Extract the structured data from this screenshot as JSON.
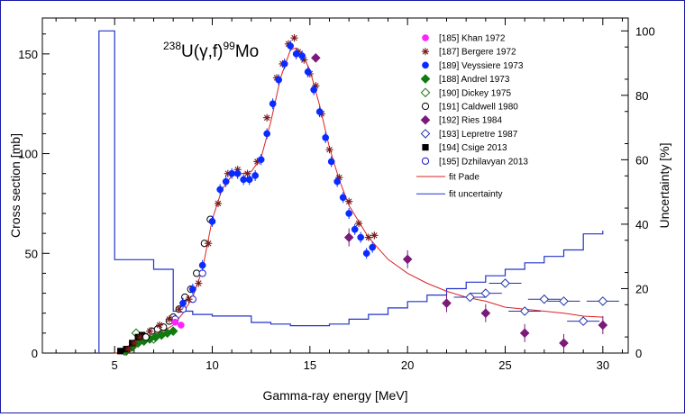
{
  "chart_data": {
    "type": "scatter",
    "title_parts": {
      "mass_target": "238",
      "element_target": "U(",
      "gamma": "γ",
      "reaction": ",f)",
      "mass_product": "99",
      "element_product": "Mo"
    },
    "xlabel": "Gamma-ray energy [MeV]",
    "ylabel": "Cross section [mb]",
    "y2label": "Uncertainty [%]",
    "xlim": [
      1.3,
      31.3
    ],
    "ylim": [
      0,
      168
    ],
    "y2lim": [
      0,
      104
    ],
    "xticks": [
      5,
      10,
      15,
      20,
      25,
      30
    ],
    "yticks": [
      0,
      50,
      100,
      150
    ],
    "y2ticks": [
      0,
      20,
      40,
      60,
      80,
      100
    ],
    "colors": {
      "frame": "#1a1aa6",
      "fit": "#dd2222",
      "uncertainty": "#2233cc"
    },
    "series": [
      {
        "name": "[185] Khan 1972",
        "marker": "dot",
        "color": "#ff22ff",
        "points": [
          [
            8.1,
            15.5
          ],
          [
            8.4,
            14
          ]
        ]
      },
      {
        "name": "[187] Bergere 1972",
        "marker": "star",
        "color": "#7a1a1a",
        "points": [
          [
            5.7,
            2
          ],
          [
            6.0,
            5
          ],
          [
            6.3,
            8
          ],
          [
            6.8,
            11
          ],
          [
            7.3,
            14
          ],
          [
            7.8,
            17
          ],
          [
            8.3,
            22
          ],
          [
            8.8,
            27
          ],
          [
            9.3,
            35
          ],
          [
            9.8,
            55
          ],
          [
            10.3,
            75
          ],
          [
            10.8,
            90
          ],
          [
            11.3,
            92
          ],
          [
            11.8,
            90
          ],
          [
            12.3,
            96
          ],
          [
            12.8,
            118
          ],
          [
            13.3,
            138
          ],
          [
            13.6,
            145
          ],
          [
            13.9,
            155
          ],
          [
            14.2,
            158
          ],
          [
            14.4,
            151
          ],
          [
            14.7,
            147
          ],
          [
            15.0,
            140
          ],
          [
            15.3,
            134
          ],
          [
            15.6,
            120
          ],
          [
            16.0,
            102
          ],
          [
            16.5,
            88
          ],
          [
            17.0,
            76
          ],
          [
            17.5,
            65
          ],
          [
            18.0,
            58
          ],
          [
            18.3,
            59
          ]
        ]
      },
      {
        "name": "[189] Veyssiere 1973",
        "marker": "dot",
        "color": "#0a2bff",
        "points": [
          [
            8.5,
            25
          ],
          [
            9.0,
            32
          ],
          [
            9.5,
            44
          ],
          [
            10.0,
            66
          ],
          [
            10.4,
            82
          ],
          [
            10.7,
            86
          ],
          [
            11.0,
            90
          ],
          [
            11.3,
            90
          ],
          [
            11.6,
            87
          ],
          [
            11.9,
            87
          ],
          [
            12.2,
            89
          ],
          [
            12.5,
            97
          ],
          [
            12.8,
            110
          ],
          [
            13.1,
            125
          ],
          [
            13.4,
            137
          ],
          [
            13.7,
            145
          ],
          [
            14.0,
            154
          ],
          [
            14.3,
            150
          ],
          [
            14.6,
            149
          ],
          [
            14.9,
            141
          ],
          [
            15.2,
            132
          ],
          [
            15.5,
            121
          ],
          [
            15.8,
            108
          ],
          [
            16.1,
            96
          ],
          [
            16.4,
            86
          ],
          [
            16.7,
            78
          ],
          [
            17.0,
            70
          ],
          [
            17.3,
            62
          ],
          [
            17.6,
            58
          ],
          [
            17.9,
            50
          ],
          [
            18.2,
            53
          ]
        ]
      },
      {
        "name": "[188] Andrel 1973",
        "marker": "diamond",
        "color": "#117a11",
        "points": [
          [
            5.6,
            1
          ],
          [
            5.9,
            3
          ],
          [
            6.2,
            5
          ],
          [
            6.5,
            6
          ],
          [
            6.8,
            7
          ],
          [
            7.1,
            8
          ],
          [
            7.4,
            9
          ],
          [
            7.7,
            10
          ],
          [
            8.0,
            11
          ]
        ]
      },
      {
        "name": "[190] Dickey 1975",
        "marker": "diamond-open",
        "color": "#117a11",
        "points": [
          [
            5.5,
            1
          ],
          [
            5.9,
            3
          ],
          [
            6.1,
            10
          ],
          [
            6.6,
            8
          ],
          [
            7.0,
            7
          ]
        ]
      },
      {
        "name": "[191] Caldwell 1980",
        "marker": "circle-open",
        "color": "#000000",
        "points": [
          [
            6.6,
            8
          ],
          [
            6.9,
            11
          ],
          [
            7.2,
            12
          ],
          [
            7.5,
            13
          ],
          [
            7.8,
            16
          ],
          [
            8.0,
            18
          ],
          [
            8.3,
            22
          ],
          [
            8.6,
            28
          ],
          [
            8.9,
            32
          ],
          [
            9.2,
            40
          ],
          [
            9.6,
            55
          ],
          [
            9.9,
            67
          ]
        ]
      },
      {
        "name": "[192] Ries 1984",
        "marker": "diamond",
        "color": "#7a1a7a",
        "points": [
          [
            15.3,
            148
          ],
          [
            17.0,
            58
          ],
          [
            20.0,
            47
          ],
          [
            22.0,
            25
          ],
          [
            24.0,
            20
          ],
          [
            26.0,
            10
          ],
          [
            28.0,
            5
          ],
          [
            30.0,
            14
          ]
        ]
      },
      {
        "name": "[193] Lepretre 1987",
        "marker": "diamond-open",
        "color": "#2233aa",
        "points": [
          [
            23.2,
            28
          ],
          [
            24.0,
            30
          ],
          [
            25.0,
            35
          ],
          [
            26.0,
            21
          ],
          [
            27.0,
            27
          ],
          [
            28.0,
            26
          ],
          [
            29.0,
            16
          ],
          [
            30.0,
            26
          ]
        ]
      },
      {
        "name": "[194] Csige 2013",
        "marker": "square",
        "color": "#000000",
        "points": [
          [
            5.3,
            1
          ],
          [
            5.6,
            2
          ],
          [
            5.9,
            5
          ],
          [
            6.2,
            8
          ],
          [
            6.4,
            9
          ]
        ]
      },
      {
        "name": "[195] Dzhilavyan 2013",
        "marker": "circle-open",
        "color": "#1a1acc",
        "points": [
          [
            8.1,
            17
          ],
          [
            8.5,
            22
          ],
          [
            9.0,
            27
          ],
          [
            9.5,
            40
          ]
        ]
      }
    ],
    "fit": {
      "name": "fit Pade",
      "points": [
        [
          5.0,
          0
        ],
        [
          5.5,
          0.5
        ],
        [
          6.0,
          3
        ],
        [
          6.5,
          7
        ],
        [
          7.0,
          9
        ],
        [
          7.5,
          11
        ],
        [
          8.0,
          14
        ],
        [
          8.5,
          20
        ],
        [
          9.0,
          28
        ],
        [
          9.5,
          42
        ],
        [
          10.0,
          67
        ],
        [
          10.5,
          82
        ],
        [
          11.0,
          89
        ],
        [
          11.5,
          90
        ],
        [
          12.0,
          91
        ],
        [
          12.5,
          98
        ],
        [
          13.0,
          116
        ],
        [
          13.5,
          138
        ],
        [
          14.0,
          152
        ],
        [
          14.3,
          153
        ],
        [
          14.6,
          150
        ],
        [
          15.0,
          142
        ],
        [
          15.5,
          124
        ],
        [
          16.0,
          103
        ],
        [
          16.5,
          87
        ],
        [
          17.0,
          74
        ],
        [
          18.0,
          58
        ],
        [
          19.0,
          47
        ],
        [
          20.0,
          40
        ],
        [
          21.0,
          35
        ],
        [
          22.0,
          31
        ],
        [
          23.0,
          28
        ],
        [
          24.0,
          26
        ],
        [
          25.0,
          23
        ],
        [
          26.0,
          22
        ],
        [
          27.0,
          21
        ],
        [
          28.0,
          20
        ],
        [
          29.0,
          18.5
        ],
        [
          30.0,
          18
        ]
      ]
    },
    "uncertainty": {
      "name": "fit uncertainty",
      "steps": [
        [
          4.2,
          0
        ],
        [
          4.2,
          100
        ],
        [
          5.0,
          100
        ],
        [
          5.0,
          29
        ],
        [
          7.0,
          29
        ],
        [
          7.0,
          26
        ],
        [
          8.0,
          26
        ],
        [
          8.0,
          13
        ],
        [
          9.0,
          13
        ],
        [
          9.0,
          12
        ],
        [
          10.0,
          12
        ],
        [
          10.0,
          11.5
        ],
        [
          12.0,
          11.5
        ],
        [
          12.0,
          9.5
        ],
        [
          13.0,
          9.5
        ],
        [
          13.0,
          9
        ],
        [
          14.0,
          9
        ],
        [
          14.0,
          8.5
        ],
        [
          16.0,
          8.5
        ],
        [
          16.0,
          9
        ],
        [
          17.0,
          9
        ],
        [
          17.0,
          10.5
        ],
        [
          18.0,
          10.5
        ],
        [
          18.0,
          12
        ],
        [
          19.0,
          12
        ],
        [
          19.0,
          14
        ],
        [
          20.0,
          14
        ],
        [
          20.0,
          16
        ],
        [
          21.0,
          16
        ],
        [
          21.0,
          18
        ],
        [
          22.0,
          18
        ],
        [
          22.0,
          20
        ],
        [
          23.0,
          20
        ],
        [
          23.0,
          22
        ],
        [
          24.0,
          22
        ],
        [
          24.0,
          24
        ],
        [
          25.0,
          24
        ],
        [
          25.0,
          26
        ],
        [
          26.0,
          26
        ],
        [
          26.0,
          28
        ],
        [
          27.0,
          28
        ],
        [
          27.0,
          30
        ],
        [
          28.0,
          30
        ],
        [
          28.0,
          32
        ],
        [
          29.0,
          32
        ],
        [
          29.0,
          37
        ],
        [
          30.0,
          37
        ],
        [
          30.0,
          38
        ]
      ]
    }
  }
}
